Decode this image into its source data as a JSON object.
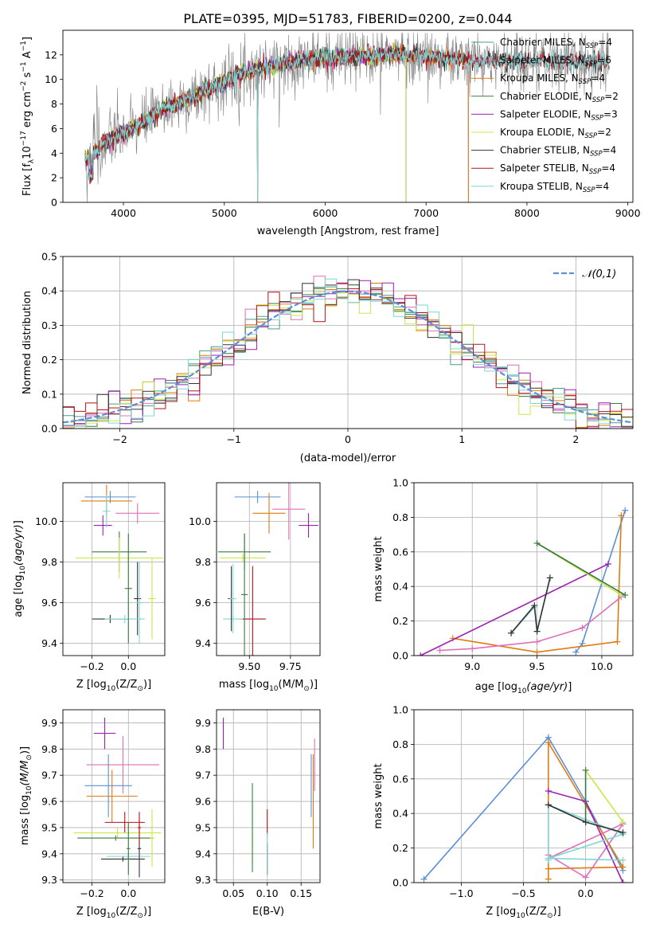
{
  "title": "PLATE=0395, MJD=51783, FIBERID=0200, z=0.044",
  "colors": {
    "Chabrier MILES": "#4a9e8a",
    "Salpeter MILES": "#e06fb8",
    "Kroupa MILES": "#e07b10",
    "Chabrier ELODIE": "#3a7a40",
    "Salpeter ELODIE": "#9d1fb2",
    "Kroupa ELODIE": "#c8e84a",
    "Chabrier STELIB": "#333333",
    "Salpeter STELIB": "#b5121b",
    "Kroupa STELIB": "#7fd6d6",
    "gaussian": "#5b8fd9",
    "blue": "#5b8fd9",
    "orange": "#e07b10",
    "pink": "#e06fb8",
    "purple": "#9d1fb2",
    "lime": "#c8e84a",
    "green": "#3a7a40",
    "red": "#b5121b",
    "cyan": "#7fd6d6",
    "dark": "#333333",
    "gray": "#808080"
  },
  "chart_data": [
    {
      "id": "spectrum",
      "type": "line",
      "title": "PLATE=0395, MJD=51783, FIBERID=0200, z=0.044",
      "xlabel": "wavelength [Angstrom, rest frame]",
      "ylabel": "Flux [f_λ10^-17 erg cm^-2 s^-1 A^-1]",
      "xlim": [
        3400,
        9050
      ],
      "ylim": [
        0,
        14
      ],
      "xticks": [
        4000,
        5000,
        6000,
        7000,
        8000,
        9000
      ],
      "yticks": [
        0,
        2,
        4,
        6,
        8,
        10,
        12
      ],
      "grid": false,
      "legend_position": "top-right",
      "legend": [
        {
          "base": "Chabrier MILES, N",
          "sub": "SSP",
          "tail": "=4"
        },
        {
          "base": "Salpeter MILES, N",
          "sub": "SSP",
          "tail": "=6"
        },
        {
          "base": "Kroupa MILES, N",
          "sub": "SSP",
          "tail": "=4"
        },
        {
          "base": "Chabrier ELODIE, N",
          "sub": "SSP",
          "tail": "=2"
        },
        {
          "base": "Salpeter ELODIE, N",
          "sub": "SSP",
          "tail": "=3"
        },
        {
          "base": "Kroupa ELODIE, N",
          "sub": "SSP",
          "tail": "=2"
        },
        {
          "base": "Chabrier STELIB, N",
          "sub": "SSP",
          "tail": "=4"
        },
        {
          "base": "Salpeter STELIB, N",
          "sub": "SSP",
          "tail": "=4"
        },
        {
          "base": "Kroupa STELIB, N",
          "sub": "SSP",
          "tail": "=4"
        }
      ],
      "data_envelope": {
        "x": [
          3650,
          3800,
          4000,
          4200,
          4400,
          4600,
          4800,
          5000,
          5200,
          5400,
          5600,
          5800,
          6000,
          6200,
          6400,
          6600,
          6800,
          7000,
          7200,
          7400
        ],
        "y": [
          3.6,
          4.8,
          5.6,
          6.5,
          7.6,
          8.2,
          9.0,
          9.8,
          10.6,
          11.0,
          11.3,
          11.6,
          11.7,
          11.8,
          11.9,
          12.0,
          12.0,
          11.9,
          11.7,
          11.5
        ]
      },
      "model_end_x": {
        "MILES": 7420,
        "ELODIE": 6800,
        "STELIB": 8800
      }
    },
    {
      "id": "residuals",
      "type": "histogram",
      "xlabel": "(data-model)/error",
      "ylabel": "Normed distribution",
      "xlim": [
        -2.5,
        2.5
      ],
      "ylim": [
        0,
        0.5
      ],
      "xticks": [
        -2,
        -1,
        0,
        1,
        2
      ],
      "yticks": [
        0.0,
        0.1,
        0.2,
        0.3,
        0.4,
        0.5
      ],
      "grid": true,
      "legend_position": "top-right",
      "legend_label": "𝒩(0,1)",
      "bins": 50
    },
    {
      "id": "age-Z",
      "type": "scatter",
      "xlabel_main": "Z [log",
      "xlabel_sub": "10",
      "xlabel_tail": "(Z/Z",
      "ylabel": "age  [log10(age/yr)]",
      "xlim": [
        -0.36,
        0.2
      ],
      "ylim": [
        9.34,
        10.19
      ],
      "xticks": [
        -0.2,
        0.0
      ],
      "yticks": [
        9.4,
        9.6,
        9.8,
        10.0
      ],
      "grid": true,
      "points": [
        {
          "c": "blue",
          "x": -0.1,
          "y": 10.12,
          "xerr": 0.14,
          "yerr": 0.03
        },
        {
          "c": "orange",
          "x": -0.12,
          "y": 10.1,
          "xerr": 0.14,
          "yerr": 0.08
        },
        {
          "c": "pink",
          "x": 0.05,
          "y": 10.04,
          "xerr": 0.12,
          "yerr": 0.05
        },
        {
          "c": "purple",
          "x": -0.14,
          "y": 9.98,
          "xerr": 0.05,
          "yerr": 0.05
        },
        {
          "c": "cyan",
          "x": -0.12,
          "y": 10.05,
          "xerr": 0.02,
          "yerr": 0.08
        },
        {
          "c": "green",
          "x": -0.05,
          "y": 9.85,
          "xerr": 0.15,
          "yerr": 0.1
        },
        {
          "c": "lime",
          "x": -0.05,
          "y": 9.82,
          "xerr": 0.24,
          "yerr": 0.1
        },
        {
          "c": "dark",
          "x": 0.05,
          "y": 9.62,
          "xerr": 0.02,
          "yerr": 0.18
        },
        {
          "c": "dark",
          "x": -0.1,
          "y": 9.52,
          "xerr": 0.1,
          "yerr": 0.02
        },
        {
          "c": "cyan",
          "x": -0.02,
          "y": 9.52,
          "xerr": 0.11,
          "yerr": 0.02
        },
        {
          "c": "green",
          "x": 0.0,
          "y": 9.67,
          "xerr": 0.02,
          "yerr": 0.27
        },
        {
          "c": "cyan",
          "x": 0.06,
          "y": 9.6,
          "xerr": 0.02,
          "yerr": 0.2
        },
        {
          "c": "lime",
          "x": 0.13,
          "y": 9.62,
          "xerr": 0.02,
          "yerr": 0.2
        }
      ]
    },
    {
      "id": "age-mass",
      "type": "scatter",
      "xlabel_main": "mass [log",
      "xlabel_sub": "10",
      "xlabel_tail": "(M/M",
      "xlim": [
        9.3,
        9.93
      ],
      "ylim": [
        9.34,
        10.19
      ],
      "xticks": [
        9.5,
        9.75
      ],
      "yticks": [
        9.4,
        9.6,
        9.8,
        10.0
      ],
      "grid": true,
      "points": [
        {
          "c": "blue",
          "x": 9.55,
          "y": 10.12,
          "xerr": 0.14,
          "yerr": 0.03
        },
        {
          "c": "orange",
          "x": 9.62,
          "y": 10.04,
          "xerr": 0.1,
          "yerr": 0.1
        },
        {
          "c": "pink",
          "x": 9.74,
          "y": 10.06,
          "xerr": 0.1,
          "yerr": 0.15
        },
        {
          "c": "purple",
          "x": 9.86,
          "y": 9.98,
          "xerr": 0.06,
          "yerr": 0.06
        },
        {
          "c": "green",
          "x": 9.47,
          "y": 9.85,
          "xerr": 0.16,
          "yerr": 0.09
        },
        {
          "c": "lime",
          "x": 9.46,
          "y": 9.82,
          "xerr": 0.14,
          "yerr": 0.02
        },
        {
          "c": "red",
          "x": 9.52,
          "y": 9.52,
          "xerr": 0.08,
          "yerr": 0.26
        },
        {
          "c": "cyan",
          "x": 9.4,
          "y": 9.52,
          "xerr": 0.06,
          "yerr": 0.02
        },
        {
          "c": "dark",
          "x": 9.39,
          "y": 9.62,
          "xerr": 0.02,
          "yerr": 0.16
        },
        {
          "c": "cyan",
          "x": 9.4,
          "y": 9.62,
          "xerr": 0.02,
          "yerr": 0.17
        },
        {
          "c": "green",
          "x": 9.47,
          "y": 9.64,
          "xerr": 0.02,
          "yerr": 0.3
        }
      ]
    },
    {
      "id": "weight-age",
      "type": "line",
      "xlabel": "age  [log10(age/yr)]",
      "ylabel": "mass weight",
      "xlim": [
        8.55,
        10.24
      ],
      "ylim": [
        0,
        1
      ],
      "xticks": [
        9.0,
        9.5,
        10.0
      ],
      "yticks": [
        0.0,
        0.2,
        0.4,
        0.6,
        0.8,
        1.0
      ],
      "grid": true,
      "series": [
        {
          "c": "blue",
          "x": [
            9.8,
            9.85,
            10.18
          ],
          "y": [
            0.02,
            0.07,
            0.84
          ]
        },
        {
          "c": "orange",
          "x": [
            8.85,
            9.5,
            10.12,
            10.15
          ],
          "y": [
            0.1,
            0.02,
            0.08,
            0.81
          ]
        },
        {
          "c": "pink",
          "x": [
            8.75,
            9.0,
            9.5,
            9.85,
            10.15
          ],
          "y": [
            0.03,
            0.04,
            0.08,
            0.16,
            0.34
          ]
        },
        {
          "c": "purple",
          "x": [
            8.6,
            10.05
          ],
          "y": [
            0.0,
            0.53
          ]
        },
        {
          "c": "lime",
          "x": [
            9.5,
            10.15
          ],
          "y": [
            0.65,
            0.35
          ]
        },
        {
          "c": "green",
          "x": [
            9.5,
            10.18
          ],
          "y": [
            0.65,
            0.35
          ]
        },
        {
          "c": "cyan",
          "x": [
            9.3,
            9.48,
            9.5,
            9.6
          ],
          "y": [
            0.13,
            0.28,
            0.14,
            0.45
          ]
        },
        {
          "c": "dark",
          "x": [
            9.3,
            9.48,
            9.5,
            9.6
          ],
          "y": [
            0.13,
            0.29,
            0.14,
            0.45
          ]
        }
      ]
    },
    {
      "id": "mass-Z",
      "type": "scatter",
      "xlabel_main": "Z [log",
      "xlabel_sub": "10",
      "xlabel_tail": "(Z/Z",
      "ylabel": "mass [log10(M/M⊙)]",
      "xlim": [
        -0.36,
        0.2
      ],
      "ylim": [
        9.29,
        9.95
      ],
      "xticks": [
        -0.2,
        0.0
      ],
      "yticks": [
        9.3,
        9.4,
        9.5,
        9.6,
        9.7,
        9.8,
        9.9
      ],
      "grid": true,
      "points": [
        {
          "c": "purple",
          "x": -0.13,
          "y": 9.86,
          "xerr": 0.06,
          "yerr": 0.06
        },
        {
          "c": "pink",
          "x": -0.03,
          "y": 9.74,
          "xerr": 0.2,
          "yerr": 0.11
        },
        {
          "c": "blue",
          "x": -0.11,
          "y": 9.66,
          "xerr": 0.13,
          "yerr": 0.12
        },
        {
          "c": "orange",
          "x": -0.09,
          "y": 9.62,
          "xerr": 0.14,
          "yerr": 0.1
        },
        {
          "c": "red",
          "x": -0.02,
          "y": 9.52,
          "xerr": 0.11,
          "yerr": 0.04
        },
        {
          "c": "lime",
          "x": -0.06,
          "y": 9.48,
          "xerr": 0.24,
          "yerr": 0.02
        },
        {
          "c": "green",
          "x": -0.07,
          "y": 9.46,
          "xerr": 0.21,
          "yerr": 0.01
        },
        {
          "c": "dark",
          "x": -0.03,
          "y": 9.38,
          "xerr": 0.12,
          "yerr": 0.01
        },
        {
          "c": "cyan",
          "x": 0.0,
          "y": 9.39,
          "xerr": 0.12,
          "yerr": 0.01
        },
        {
          "c": "green",
          "x": 0.0,
          "y": 9.42,
          "xerr": 0.01,
          "yerr": 0.1
        },
        {
          "c": "dark",
          "x": 0.06,
          "y": 9.42,
          "xerr": 0.01,
          "yerr": 0.11
        },
        {
          "c": "lime",
          "x": 0.13,
          "y": 9.46,
          "xerr": 0.01,
          "yerr": 0.11
        },
        {
          "c": "red",
          "x": 0.06,
          "y": 9.5,
          "xerr": 0.01,
          "yerr": 0.06
        }
      ]
    },
    {
      "id": "mass-ebv",
      "type": "scatter",
      "xlabel": "E(B-V)",
      "xlim": [
        0.025,
        0.178
      ],
      "ylim": [
        9.29,
        9.95
      ],
      "xticks": [
        0.05,
        0.1,
        0.15
      ],
      "yticks": [
        9.3,
        9.4,
        9.5,
        9.6,
        9.7,
        9.8,
        9.9
      ],
      "grid": true,
      "points": [
        {
          "c": "purple",
          "x": 0.035,
          "y": 9.86,
          "xerr": 0.0,
          "yerr": 0.06
        },
        {
          "c": "pink",
          "x": 0.17,
          "y": 9.74,
          "xerr": 0.0,
          "yerr": 0.1
        },
        {
          "c": "blue",
          "x": 0.165,
          "y": 9.66,
          "xerr": 0.0,
          "yerr": 0.12
        },
        {
          "c": "orange",
          "x": 0.168,
          "y": 9.6,
          "xerr": 0.0,
          "yerr": 0.18
        },
        {
          "c": "red",
          "x": 0.1,
          "y": 9.52,
          "xerr": 0.0,
          "yerr": 0.05
        },
        {
          "c": "lime",
          "x": 0.078,
          "y": 9.48,
          "xerr": 0.0,
          "yerr": 0.12
        },
        {
          "c": "green",
          "x": 0.078,
          "y": 9.5,
          "xerr": 0.0,
          "yerr": 0.17
        },
        {
          "c": "dark",
          "x": 0.1,
          "y": 9.38,
          "xerr": 0.0,
          "yerr": 0.06
        },
        {
          "c": "cyan",
          "x": 0.1,
          "y": 9.4,
          "xerr": 0.0,
          "yerr": 0.08
        }
      ]
    },
    {
      "id": "weight-Z",
      "type": "line",
      "xlabel_main": "Z [log",
      "xlabel_sub": "10",
      "xlabel_tail": "(Z/Z",
      "ylabel": "mass weight",
      "xlim": [
        -1.38,
        0.38
      ],
      "ylim": [
        0,
        1
      ],
      "xticks": [
        -1.0,
        -0.5,
        0.0
      ],
      "yticks": [
        0.0,
        0.2,
        0.4,
        0.6,
        0.8,
        1.0
      ],
      "grid": true,
      "series": [
        {
          "c": "blue",
          "x": [
            -1.3,
            -0.3,
            0.0,
            0.3
          ],
          "y": [
            0.02,
            0.84,
            0.47,
            0.07
          ]
        },
        {
          "c": "orange",
          "x": [
            -0.3,
            -0.3,
            0.3,
            -0.3
          ],
          "y": [
            0.02,
            0.81,
            0.09,
            0.08
          ]
        },
        {
          "c": "pink",
          "x": [
            -0.3,
            0.0,
            0.3,
            -0.3
          ],
          "y": [
            0.16,
            0.03,
            0.34,
            0.14
          ]
        },
        {
          "c": "purple",
          "x": [
            -0.3,
            0.0,
            0.3
          ],
          "y": [
            0.53,
            0.47,
            0.0
          ]
        },
        {
          "c": "lime",
          "x": [
            0.0,
            0.3
          ],
          "y": [
            0.65,
            0.35
          ]
        },
        {
          "c": "green",
          "x": [
            0.0,
            0.0
          ],
          "y": [
            0.65,
            0.35
          ]
        },
        {
          "c": "cyan",
          "x": [
            -0.3,
            -0.3,
            0.3,
            -0.3,
            0.3
          ],
          "y": [
            0.13,
            0.45,
            0.28,
            0.14,
            0.13
          ]
        },
        {
          "c": "dark",
          "x": [
            -0.3,
            0.0,
            0.3
          ],
          "y": [
            0.45,
            0.35,
            0.29
          ]
        }
      ]
    }
  ]
}
